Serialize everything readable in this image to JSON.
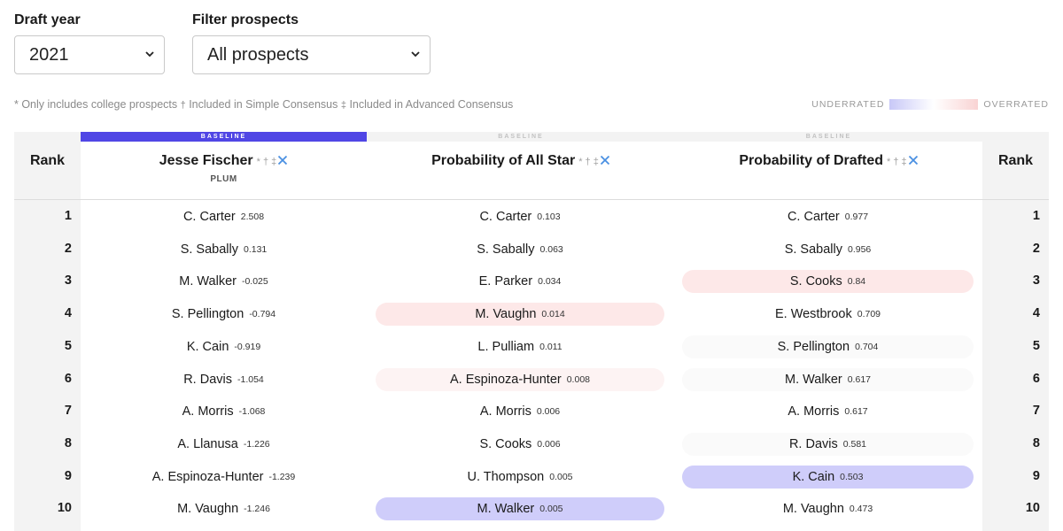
{
  "controls": {
    "year_label": "Draft year",
    "year_value": "2021",
    "filter_label": "Filter prospects",
    "filter_value": "All prospects"
  },
  "legend": {
    "note_1": "* Only includes college prospects",
    "mark_2": "†",
    "note_2": " Included in Simple Consensus",
    "mark_3": "‡",
    "note_3": " Included in Advanced Consensus",
    "underrated": "UNDERRATED",
    "overrated": "OVERRATED"
  },
  "table": {
    "rank_label": "Rank",
    "baseline_label": "BASELINE",
    "marks": "* † ‡",
    "columns": [
      {
        "title": "Jesse Fischer",
        "subtitle": "PLUM",
        "rows": [
          {
            "name": "C. Carter",
            "value": "2.508"
          },
          {
            "name": "S. Sabally",
            "value": "0.131"
          },
          {
            "name": "M. Walker",
            "value": "-0.025"
          },
          {
            "name": "S. Pellington",
            "value": "-0.794"
          },
          {
            "name": "K. Cain",
            "value": "-0.919"
          },
          {
            "name": "R. Davis",
            "value": "-1.054"
          },
          {
            "name": "A. Morris",
            "value": "-1.068"
          },
          {
            "name": "A. Llanusa",
            "value": "-1.226"
          },
          {
            "name": "A. Espinoza-Hunter",
            "value": "-1.239"
          },
          {
            "name": "M. Vaughn",
            "value": "-1.246"
          }
        ]
      },
      {
        "title": "Probability of All Star",
        "subtitle": "",
        "rows": [
          {
            "name": "C. Carter",
            "value": "0.103"
          },
          {
            "name": "S. Sabally",
            "value": "0.063"
          },
          {
            "name": "E. Parker",
            "value": "0.034"
          },
          {
            "name": "M. Vaughn",
            "value": "0.014"
          },
          {
            "name": "L. Pulliam",
            "value": "0.011"
          },
          {
            "name": "A. Espinoza-Hunter",
            "value": "0.008"
          },
          {
            "name": "A. Morris",
            "value": "0.006"
          },
          {
            "name": "S. Cooks",
            "value": "0.006"
          },
          {
            "name": "U. Thompson",
            "value": "0.005"
          },
          {
            "name": "M. Walker",
            "value": "0.005"
          }
        ]
      },
      {
        "title": "Probability of Drafted",
        "subtitle": "",
        "rows": [
          {
            "name": "C. Carter",
            "value": "0.977"
          },
          {
            "name": "S. Sabally",
            "value": "0.956"
          },
          {
            "name": "S. Cooks",
            "value": "0.84"
          },
          {
            "name": "E. Westbrook",
            "value": "0.709"
          },
          {
            "name": "S. Pellington",
            "value": "0.704"
          },
          {
            "name": "M. Walker",
            "value": "0.617"
          },
          {
            "name": "A. Morris",
            "value": "0.617"
          },
          {
            "name": "R. Davis",
            "value": "0.581"
          },
          {
            "name": "K. Cain",
            "value": "0.503"
          },
          {
            "name": "M. Vaughn",
            "value": "0.473"
          }
        ]
      }
    ],
    "ranks": [
      "1",
      "2",
      "3",
      "4",
      "5",
      "6",
      "7",
      "8",
      "9",
      "10"
    ]
  },
  "colors": {
    "baseline_active": "#5046e5",
    "overrated_highlight": "#fde8e8",
    "underrated_highlight": "#cfcdfa"
  }
}
